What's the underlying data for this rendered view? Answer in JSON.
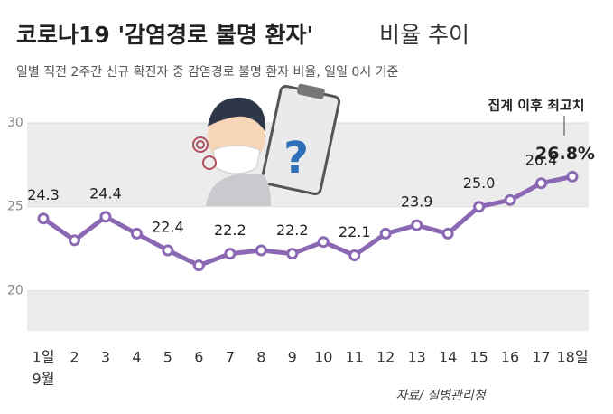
{
  "chart_data": {
    "type": "line",
    "title": [
      "코로나19 '감염경로 불명 환자'",
      "비율 추이"
    ],
    "subtitle": "일별 직전 2주간 신규 확진자 중 감염경로 불명 환자 비율, 일일 0시 기준",
    "annotation": "집계 이후 최고치",
    "month_label": "9월",
    "source": "자료/ 질병관리청",
    "categories": [
      "1일",
      "2",
      "3",
      "4",
      "5",
      "6",
      "7",
      "8",
      "9",
      "10",
      "11",
      "12",
      "13",
      "14",
      "15",
      "16",
      "17",
      "18일"
    ],
    "values": [
      24.3,
      23.0,
      24.4,
      23.4,
      22.4,
      21.5,
      22.2,
      22.4,
      22.2,
      22.9,
      22.1,
      23.4,
      23.9,
      23.4,
      25.0,
      25.4,
      26.4,
      26.8
    ],
    "value_labels": [
      "24.3",
      null,
      "24.4",
      null,
      "22.4",
      null,
      "22.2",
      null,
      "22.2",
      null,
      "22.1",
      null,
      "23.9",
      null,
      "25.0",
      null,
      "26.4",
      "26.8%"
    ],
    "color": "#8b68b3",
    "ylim": [
      17.6,
      30
    ],
    "yticks": [
      20,
      25,
      30
    ]
  }
}
